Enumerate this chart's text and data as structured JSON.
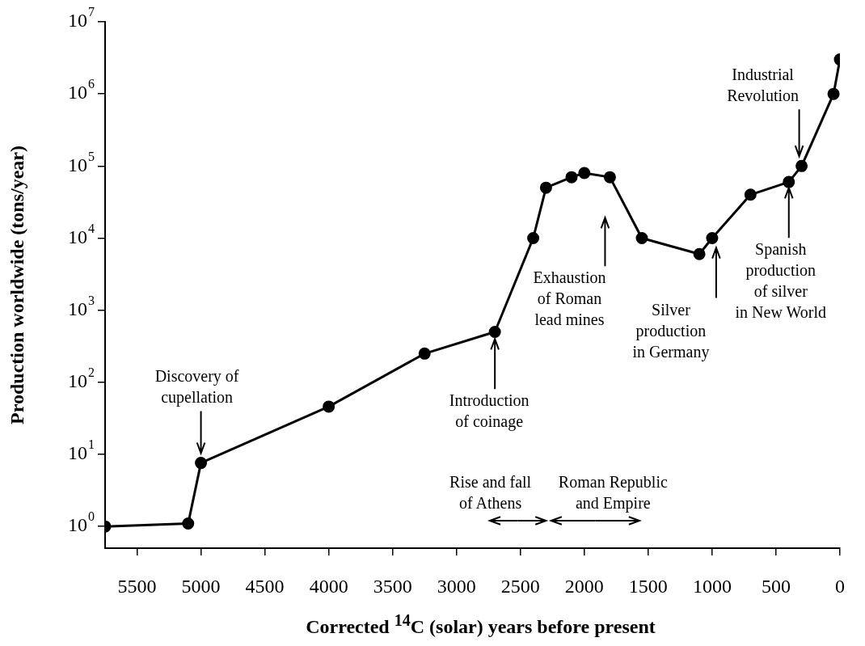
{
  "chart_data": {
    "type": "line",
    "xlabel": "Corrected $^{14}$C (solar) years before present",
    "ylabel": "Production worldwide (tons/year)",
    "x": [
      5750,
      5100,
      5000,
      4000,
      3250,
      2700,
      2400,
      2300,
      2100,
      2000,
      1800,
      1550,
      1100,
      1000,
      700,
      400,
      300,
      50,
      0
    ],
    "series": [
      {
        "color": "#000000",
        "values": [
          1,
          1.1,
          7.6,
          46,
          250,
          500,
          10000,
          50000,
          70000,
          80000,
          70000,
          10000,
          6000,
          10000,
          40000,
          60000,
          100000,
          1000000,
          3000000
        ]
      }
    ],
    "xlim": [
      5750,
      0
    ],
    "xticks": [
      5500,
      5000,
      4500,
      4000,
      3500,
      3000,
      2500,
      2000,
      1500,
      1000,
      500,
      0
    ],
    "ylim": [
      0.5,
      10000000
    ],
    "yticks": [
      {
        "value": 1,
        "label": "10$^{0}$"
      },
      {
        "value": 10,
        "label": "10$^{1}$"
      },
      {
        "value": 100,
        "label": "10$^{2}$"
      },
      {
        "value": 1000,
        "label": "10$^{3}$"
      },
      {
        "value": 10000,
        "label": "10$^{4}$"
      },
      {
        "value": 100000,
        "label": "10$^{5}$"
      },
      {
        "value": 1000000,
        "label": "10$^{6}$"
      },
      {
        "value": 10000000,
        "label": "10$^{7}$"
      }
    ],
    "log": "y",
    "grid": false,
    "legend": false,
    "marker": "circle",
    "line_style": "solid",
    "annotations": [
      "Discovery of\ncupellation",
      {
        "text": "Introduction\nof coinage",
        "x": 2700,
        "y": 400
      },
      "Exhaustion\nof Roman\nlead mines",
      "Silver\nproduction\nin Germany",
      {
        "text": "Spanish\nproduction\nof silver\nin New World",
        "x": 400,
        "y": 50000
      },
      "Industrial\nRevolution",
      "Rise and fall\nof Athens",
      "Roman Republic\nand Empire"
    ]
  }
}
